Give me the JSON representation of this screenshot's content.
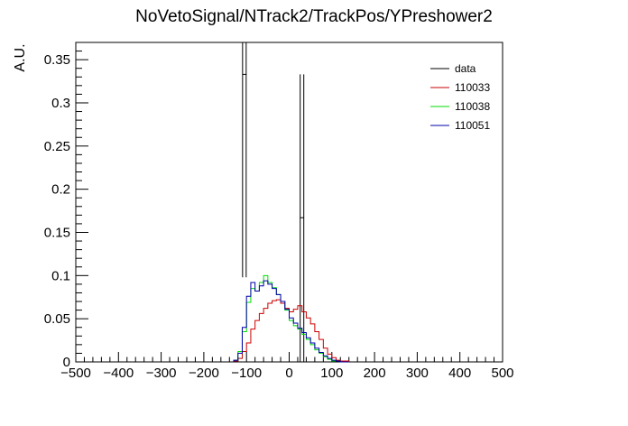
{
  "chart_data": {
    "type": "line",
    "title": "NoVetoSignal/NTrack2/TrackPos/YPreshower2",
    "xlabel": "",
    "ylabel": "A.U.",
    "xlim": [
      -500,
      500
    ],
    "ylim": [
      0,
      0.37
    ],
    "x_ticks": [
      -500,
      -400,
      -300,
      -200,
      -100,
      0,
      100,
      200,
      300,
      400,
      500
    ],
    "x_tick_labels": [
      "−500",
      "−400",
      "−300",
      "−200",
      "−100",
      "0",
      "100",
      "200",
      "300",
      "400",
      "500"
    ],
    "y_ticks": [
      0,
      0.05,
      0.1,
      0.15,
      0.2,
      0.25,
      0.3,
      0.35
    ],
    "y_tick_labels": [
      "0",
      "0.05",
      "0.1",
      "0.15",
      "0.2",
      "0.25",
      "0.3",
      "0.35"
    ],
    "grid": false,
    "legend_position": "top-right",
    "bin_edges_x": [
      -130,
      -120,
      -110,
      -100,
      -90,
      -80,
      -70,
      -60,
      -50,
      -40,
      -30,
      -20,
      -10,
      0,
      10,
      20,
      30,
      40,
      50,
      60,
      70,
      80,
      90,
      100,
      110,
      120,
      130,
      140
    ],
    "series": [
      {
        "name": "data",
        "style": "points",
        "color": "#000000",
        "points": [
          {
            "x": -105,
            "y": 0.333,
            "y_low": 0.098,
            "y_high": 0.37,
            "x_halfwidth": 5
          },
          {
            "x": 30,
            "y": 0.167,
            "y_low": 0.0,
            "y_high": 0.333,
            "x_halfwidth": 5
          }
        ]
      },
      {
        "name": "110033",
        "style": "step",
        "color": "#cc0000",
        "values": [
          0.001,
          0.004,
          0.012,
          0.022,
          0.038,
          0.048,
          0.056,
          0.062,
          0.068,
          0.071,
          0.072,
          0.068,
          0.062,
          0.058,
          0.061,
          0.065,
          0.058,
          0.051,
          0.044,
          0.035,
          0.026,
          0.016,
          0.009,
          0.005,
          0.002,
          0.001,
          0.001
        ]
      },
      {
        "name": "110038",
        "style": "step",
        "color": "#00dd00",
        "values": [
          0.002,
          0.012,
          0.035,
          0.069,
          0.085,
          0.082,
          0.092,
          0.1,
          0.092,
          0.086,
          0.078,
          0.07,
          0.06,
          0.048,
          0.042,
          0.038,
          0.032,
          0.026,
          0.02,
          0.014,
          0.01,
          0.006,
          0.003,
          0.001,
          0.001,
          0.0,
          0.0
        ]
      },
      {
        "name": "110051",
        "style": "step",
        "color": "#0000aa",
        "values": [
          0.002,
          0.01,
          0.04,
          0.076,
          0.092,
          0.082,
          0.088,
          0.094,
          0.09,
          0.085,
          0.078,
          0.07,
          0.061,
          0.051,
          0.045,
          0.039,
          0.034,
          0.028,
          0.022,
          0.016,
          0.011,
          0.007,
          0.004,
          0.002,
          0.001,
          0.0,
          0.0
        ]
      }
    ]
  }
}
